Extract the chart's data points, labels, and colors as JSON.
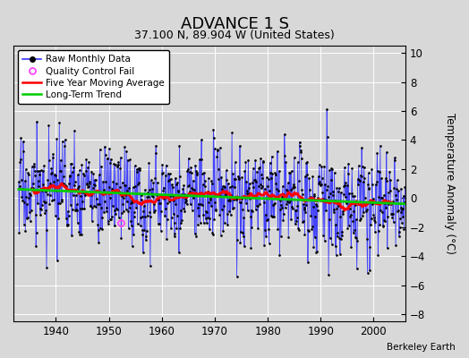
{
  "title": "ADVANCE 1 S",
  "subtitle": "37.100 N, 89.904 W (United States)",
  "ylabel": "Temperature Anomaly (°C)",
  "credit": "Berkeley Earth",
  "xlim": [
    1932,
    2006
  ],
  "ylim": [
    -8.5,
    10.5
  ],
  "yticks": [
    -8,
    -6,
    -4,
    -2,
    0,
    2,
    4,
    6,
    8,
    10
  ],
  "xticks": [
    1940,
    1950,
    1960,
    1970,
    1980,
    1990,
    2000
  ],
  "raw_color": "#3333ff",
  "moving_avg_color": "#ff0000",
  "trend_color": "#00cc00",
  "qc_color": "#ff44ff",
  "figure_bg": "#d8d8d8",
  "plot_bg": "#d8d8d8",
  "grid_color": "#ffffff",
  "start_year": 1933,
  "end_year": 2005,
  "seed": 17,
  "noise_std": 2.2,
  "qc_year": 1952.3,
  "qc_val": -1.7
}
